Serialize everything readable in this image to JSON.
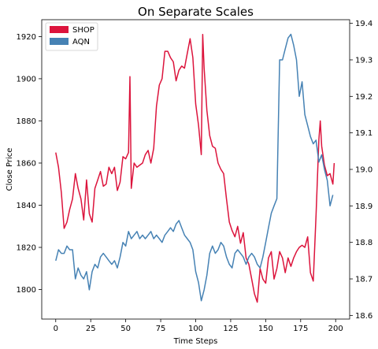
{
  "chart_data": {
    "type": "line",
    "title": "On Separate Scales",
    "xlabel": "Time Steps",
    "ylabel": "Close Price",
    "xlim": [
      -10,
      210
    ],
    "xticks": [
      0,
      25,
      50,
      75,
      100,
      125,
      150,
      175,
      200
    ],
    "legend": "top-left",
    "grid": false,
    "axes": {
      "left": {
        "ylim": [
          1786,
          1928
        ],
        "ticks": [
          1800,
          1820,
          1840,
          1860,
          1880,
          1900,
          1920
        ]
      },
      "right": {
        "ylim": [
          18.59,
          19.41
        ],
        "ticks": [
          18.6,
          18.7,
          18.8,
          18.9,
          19.0,
          19.1,
          19.2,
          19.3,
          19.4
        ]
      }
    },
    "series": [
      {
        "name": "SHOP",
        "color": "#dc143c",
        "axis": "left",
        "x": [
          0,
          2,
          4,
          6,
          8,
          10,
          12,
          14,
          16,
          18,
          20,
          22,
          24,
          26,
          28,
          30,
          32,
          34,
          36,
          38,
          40,
          42,
          44,
          46,
          48,
          50,
          52,
          53,
          54,
          56,
          58,
          60,
          62,
          64,
          66,
          68,
          70,
          72,
          74,
          76,
          78,
          80,
          82,
          84,
          86,
          88,
          90,
          92,
          94,
          96,
          98,
          100,
          102,
          104,
          105,
          106,
          108,
          110,
          112,
          114,
          116,
          118,
          120,
          122,
          124,
          126,
          128,
          130,
          132,
          134,
          136,
          138,
          140,
          142,
          144,
          146,
          148,
          150,
          152,
          154,
          156,
          158,
          160,
          162,
          164,
          166,
          168,
          170,
          172,
          174,
          176,
          178,
          180,
          182,
          184,
          186,
          188,
          189,
          190,
          192,
          194,
          196,
          198,
          199
        ],
        "values": [
          1865,
          1858,
          1846,
          1829,
          1832,
          1838,
          1843,
          1855,
          1848,
          1843,
          1833,
          1852,
          1836,
          1832,
          1848,
          1852,
          1856,
          1849,
          1850,
          1858,
          1855,
          1858,
          1847,
          1851,
          1863,
          1862,
          1865,
          1901,
          1848,
          1860,
          1858,
          1859,
          1860,
          1864,
          1866,
          1860,
          1867,
          1887,
          1897,
          1900,
          1913,
          1913,
          1910,
          1908,
          1899,
          1904,
          1906,
          1905,
          1912,
          1919,
          1910,
          1888,
          1878,
          1864,
          1921,
          1905,
          1885,
          1873,
          1868,
          1867,
          1860,
          1857,
          1855,
          1843,
          1832,
          1828,
          1825,
          1830,
          1822,
          1827,
          1815,
          1812,
          1805,
          1798,
          1794,
          1810,
          1805,
          1803,
          1815,
          1818,
          1805,
          1810,
          1818,
          1815,
          1808,
          1815,
          1811,
          1815,
          1818,
          1820,
          1821,
          1820,
          1825,
          1808,
          1804,
          1835,
          1871,
          1880,
          1868,
          1859,
          1854,
          1855,
          1850,
          1860
        ]
      },
      {
        "name": "AQN",
        "color": "#4682b4",
        "axis": "right",
        "x": [
          0,
          2,
          4,
          6,
          8,
          10,
          12,
          14,
          16,
          18,
          20,
          22,
          24,
          26,
          28,
          30,
          32,
          34,
          36,
          38,
          40,
          42,
          44,
          46,
          48,
          50,
          52,
          54,
          56,
          58,
          60,
          62,
          64,
          66,
          68,
          70,
          72,
          74,
          76,
          78,
          80,
          82,
          84,
          86,
          88,
          90,
          92,
          94,
          96,
          98,
          100,
          102,
          104,
          106,
          108,
          110,
          112,
          114,
          116,
          118,
          120,
          122,
          124,
          126,
          128,
          130,
          132,
          134,
          136,
          138,
          140,
          142,
          144,
          146,
          148,
          150,
          152,
          154,
          156,
          158,
          160,
          162,
          164,
          166,
          168,
          170,
          172,
          174,
          176,
          178,
          180,
          182,
          184,
          186,
          188,
          190,
          192,
          194,
          196,
          198
        ],
        "values": [
          18.75,
          18.78,
          18.77,
          18.77,
          18.79,
          18.78,
          18.78,
          18.7,
          18.73,
          18.71,
          18.7,
          18.72,
          18.67,
          18.72,
          18.74,
          18.73,
          18.76,
          18.77,
          18.76,
          18.75,
          18.74,
          18.75,
          18.73,
          18.76,
          18.8,
          18.79,
          18.83,
          18.81,
          18.82,
          18.83,
          18.81,
          18.82,
          18.81,
          18.82,
          18.83,
          18.81,
          18.82,
          18.81,
          18.8,
          18.82,
          18.83,
          18.84,
          18.83,
          18.85,
          18.86,
          18.84,
          18.82,
          18.81,
          18.8,
          18.78,
          18.72,
          18.69,
          18.64,
          18.67,
          18.71,
          18.77,
          18.79,
          18.77,
          18.78,
          18.8,
          18.79,
          18.76,
          18.74,
          18.73,
          18.77,
          18.78,
          18.77,
          18.76,
          18.74,
          18.76,
          18.77,
          18.76,
          18.74,
          18.73,
          18.76,
          18.8,
          18.84,
          18.88,
          18.9,
          18.92,
          19.3,
          19.3,
          19.33,
          19.36,
          19.37,
          19.34,
          19.3,
          19.2,
          19.24,
          19.15,
          19.12,
          19.09,
          19.07,
          19.08,
          19.02,
          19.04,
          19.0,
          18.97,
          18.9,
          18.93
        ]
      }
    ]
  }
}
